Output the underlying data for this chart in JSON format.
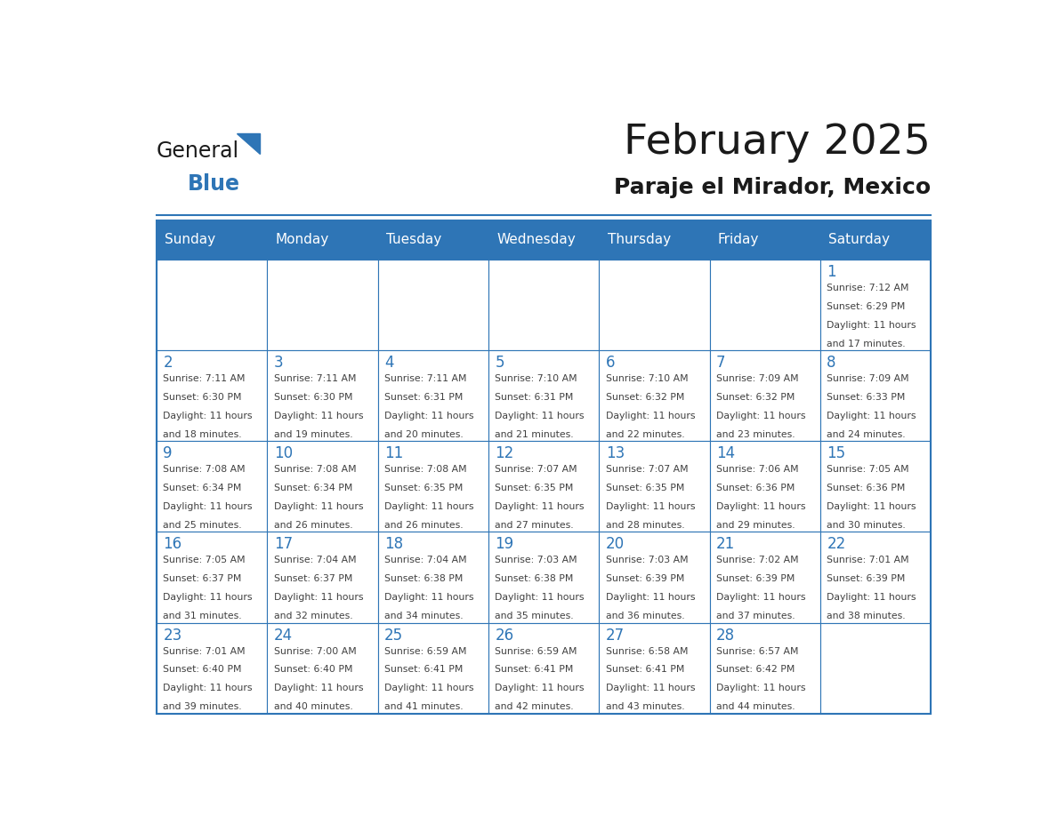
{
  "title": "February 2025",
  "subtitle": "Paraje el Mirador, Mexico",
  "header_color": "#2E75B6",
  "header_text_color": "#FFFFFF",
  "cell_bg_color": "#FFFFFF",
  "border_color": "#2E75B6",
  "day_number_color": "#2E75B6",
  "info_text_color": "#404040",
  "days_of_week": [
    "Sunday",
    "Monday",
    "Tuesday",
    "Wednesday",
    "Thursday",
    "Friday",
    "Saturday"
  ],
  "weeks": [
    [
      {
        "day": "",
        "sunrise": "",
        "sunset": "",
        "daylight_hours": "",
        "daylight_minutes": ""
      },
      {
        "day": "",
        "sunrise": "",
        "sunset": "",
        "daylight_hours": "",
        "daylight_minutes": ""
      },
      {
        "day": "",
        "sunrise": "",
        "sunset": "",
        "daylight_hours": "",
        "daylight_minutes": ""
      },
      {
        "day": "",
        "sunrise": "",
        "sunset": "",
        "daylight_hours": "",
        "daylight_minutes": ""
      },
      {
        "day": "",
        "sunrise": "",
        "sunset": "",
        "daylight_hours": "",
        "daylight_minutes": ""
      },
      {
        "day": "",
        "sunrise": "",
        "sunset": "",
        "daylight_hours": "",
        "daylight_minutes": ""
      },
      {
        "day": "1",
        "sunrise": "7:12 AM",
        "sunset": "6:29 PM",
        "daylight_hours": "11",
        "daylight_minutes": "17"
      }
    ],
    [
      {
        "day": "2",
        "sunrise": "7:11 AM",
        "sunset": "6:30 PM",
        "daylight_hours": "11",
        "daylight_minutes": "18"
      },
      {
        "day": "3",
        "sunrise": "7:11 AM",
        "sunset": "6:30 PM",
        "daylight_hours": "11",
        "daylight_minutes": "19"
      },
      {
        "day": "4",
        "sunrise": "7:11 AM",
        "sunset": "6:31 PM",
        "daylight_hours": "11",
        "daylight_minutes": "20"
      },
      {
        "day": "5",
        "sunrise": "7:10 AM",
        "sunset": "6:31 PM",
        "daylight_hours": "11",
        "daylight_minutes": "21"
      },
      {
        "day": "6",
        "sunrise": "7:10 AM",
        "sunset": "6:32 PM",
        "daylight_hours": "11",
        "daylight_minutes": "22"
      },
      {
        "day": "7",
        "sunrise": "7:09 AM",
        "sunset": "6:32 PM",
        "daylight_hours": "11",
        "daylight_minutes": "23"
      },
      {
        "day": "8",
        "sunrise": "7:09 AM",
        "sunset": "6:33 PM",
        "daylight_hours": "11",
        "daylight_minutes": "24"
      }
    ],
    [
      {
        "day": "9",
        "sunrise": "7:08 AM",
        "sunset": "6:34 PM",
        "daylight_hours": "11",
        "daylight_minutes": "25"
      },
      {
        "day": "10",
        "sunrise": "7:08 AM",
        "sunset": "6:34 PM",
        "daylight_hours": "11",
        "daylight_minutes": "26"
      },
      {
        "day": "11",
        "sunrise": "7:08 AM",
        "sunset": "6:35 PM",
        "daylight_hours": "11",
        "daylight_minutes": "26"
      },
      {
        "day": "12",
        "sunrise": "7:07 AM",
        "sunset": "6:35 PM",
        "daylight_hours": "11",
        "daylight_minutes": "27"
      },
      {
        "day": "13",
        "sunrise": "7:07 AM",
        "sunset": "6:35 PM",
        "daylight_hours": "11",
        "daylight_minutes": "28"
      },
      {
        "day": "14",
        "sunrise": "7:06 AM",
        "sunset": "6:36 PM",
        "daylight_hours": "11",
        "daylight_minutes": "29"
      },
      {
        "day": "15",
        "sunrise": "7:05 AM",
        "sunset": "6:36 PM",
        "daylight_hours": "11",
        "daylight_minutes": "30"
      }
    ],
    [
      {
        "day": "16",
        "sunrise": "7:05 AM",
        "sunset": "6:37 PM",
        "daylight_hours": "11",
        "daylight_minutes": "31"
      },
      {
        "day": "17",
        "sunrise": "7:04 AM",
        "sunset": "6:37 PM",
        "daylight_hours": "11",
        "daylight_minutes": "32"
      },
      {
        "day": "18",
        "sunrise": "7:04 AM",
        "sunset": "6:38 PM",
        "daylight_hours": "11",
        "daylight_minutes": "34"
      },
      {
        "day": "19",
        "sunrise": "7:03 AM",
        "sunset": "6:38 PM",
        "daylight_hours": "11",
        "daylight_minutes": "35"
      },
      {
        "day": "20",
        "sunrise": "7:03 AM",
        "sunset": "6:39 PM",
        "daylight_hours": "11",
        "daylight_minutes": "36"
      },
      {
        "day": "21",
        "sunrise": "7:02 AM",
        "sunset": "6:39 PM",
        "daylight_hours": "11",
        "daylight_minutes": "37"
      },
      {
        "day": "22",
        "sunrise": "7:01 AM",
        "sunset": "6:39 PM",
        "daylight_hours": "11",
        "daylight_minutes": "38"
      }
    ],
    [
      {
        "day": "23",
        "sunrise": "7:01 AM",
        "sunset": "6:40 PM",
        "daylight_hours": "11",
        "daylight_minutes": "39"
      },
      {
        "day": "24",
        "sunrise": "7:00 AM",
        "sunset": "6:40 PM",
        "daylight_hours": "11",
        "daylight_minutes": "40"
      },
      {
        "day": "25",
        "sunrise": "6:59 AM",
        "sunset": "6:41 PM",
        "daylight_hours": "11",
        "daylight_minutes": "41"
      },
      {
        "day": "26",
        "sunrise": "6:59 AM",
        "sunset": "6:41 PM",
        "daylight_hours": "11",
        "daylight_minutes": "42"
      },
      {
        "day": "27",
        "sunrise": "6:58 AM",
        "sunset": "6:41 PM",
        "daylight_hours": "11",
        "daylight_minutes": "43"
      },
      {
        "day": "28",
        "sunrise": "6:57 AM",
        "sunset": "6:42 PM",
        "daylight_hours": "11",
        "daylight_minutes": "44"
      },
      {
        "day": "",
        "sunrise": "",
        "sunset": "",
        "daylight_hours": "",
        "daylight_minutes": ""
      }
    ]
  ]
}
